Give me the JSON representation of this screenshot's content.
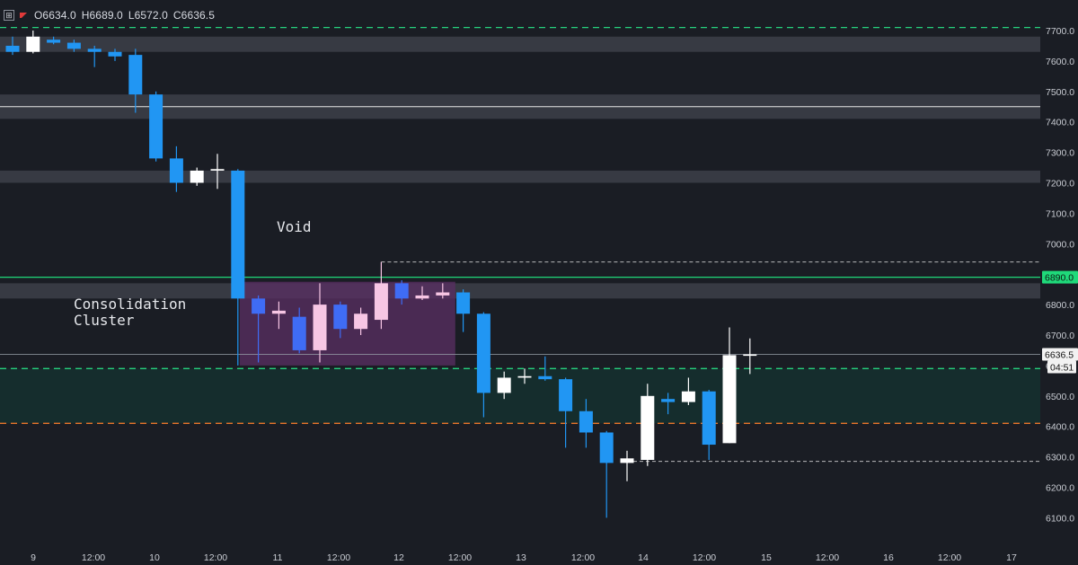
{
  "header": {
    "open": "O6634.0",
    "high": "H6689.0",
    "low": "L6572.0",
    "close": "C6636.5"
  },
  "annotations": {
    "void": "Void",
    "consolidation_line1": "Consolidation",
    "consolidation_line2": "Cluster"
  },
  "price_tags": {
    "green_line": "6890.0",
    "current_price": "6636.5",
    "countdown": "04:51"
  },
  "colors": {
    "background": "#1a1d24",
    "bull_candle": "#ffffff",
    "bear_candle": "#2196f3",
    "consolidation_bull": "#f7c6e4",
    "consolidation_bear": "#3f6cf5",
    "zone_gray": "#3d4049",
    "consolidation_box": "#5b2f63",
    "teal_zone": "#15302f",
    "green_dashed": "#26d07c",
    "orange_dashed": "#e8742a",
    "green_line": "#1fd97a"
  },
  "chart_data": {
    "type": "candlestick",
    "x_tick_labels": [
      "9",
      "12:00",
      "10",
      "12:00",
      "11",
      "12:00",
      "12",
      "12:00",
      "13",
      "12:00",
      "14",
      "12:00",
      "15",
      "12:00",
      "16",
      "12:00",
      "17"
    ],
    "y_ticks": [
      6100,
      6200,
      6300,
      6400,
      6500,
      6600,
      6700,
      6800,
      6900,
      7000,
      7100,
      7200,
      7300,
      7400,
      7500,
      7600,
      7700
    ],
    "ylim": [
      6000,
      7760
    ],
    "candles": [
      {
        "o": 7630,
        "h": 7680,
        "l": 7620,
        "c": 7650,
        "style": "bear"
      },
      {
        "o": 7630,
        "h": 7700,
        "l": 7625,
        "c": 7680,
        "style": "bull"
      },
      {
        "o": 7670,
        "h": 7680,
        "l": 7655,
        "c": 7660,
        "style": "bear"
      },
      {
        "o": 7660,
        "h": 7670,
        "l": 7630,
        "c": 7640,
        "style": "bear"
      },
      {
        "o": 7640,
        "h": 7650,
        "l": 7580,
        "c": 7630,
        "style": "bear"
      },
      {
        "o": 7630,
        "h": 7640,
        "l": 7600,
        "c": 7615,
        "style": "bear"
      },
      {
        "o": 7620,
        "h": 7640,
        "l": 7430,
        "c": 7490,
        "style": "bear"
      },
      {
        "o": 7490,
        "h": 7500,
        "l": 7270,
        "c": 7280,
        "style": "bear"
      },
      {
        "o": 7280,
        "h": 7320,
        "l": 7170,
        "c": 7200,
        "style": "bear"
      },
      {
        "o": 7200,
        "h": 7250,
        "l": 7190,
        "c": 7240,
        "style": "bull"
      },
      {
        "o": 7240,
        "h": 7295,
        "l": 7180,
        "c": 7245,
        "style": "bull"
      },
      {
        "o": 7240,
        "h": 7245,
        "l": 6600,
        "c": 6820,
        "style": "bear"
      },
      {
        "o": 6820,
        "h": 6830,
        "l": 6610,
        "c": 6770,
        "style": "cbear"
      },
      {
        "o": 6770,
        "h": 6810,
        "l": 6720,
        "c": 6780,
        "style": "cbull"
      },
      {
        "o": 6760,
        "h": 6790,
        "l": 6640,
        "c": 6650,
        "style": "cbear"
      },
      {
        "o": 6650,
        "h": 6870,
        "l": 6610,
        "c": 6800,
        "style": "cbull"
      },
      {
        "o": 6800,
        "h": 6810,
        "l": 6690,
        "c": 6720,
        "style": "cbear"
      },
      {
        "o": 6720,
        "h": 6790,
        "l": 6700,
        "c": 6770,
        "style": "cbull"
      },
      {
        "o": 6750,
        "h": 6940,
        "l": 6720,
        "c": 6870,
        "style": "cbull"
      },
      {
        "o": 6870,
        "h": 6880,
        "l": 6800,
        "c": 6820,
        "style": "cbear"
      },
      {
        "o": 6820,
        "h": 6860,
        "l": 6815,
        "c": 6830,
        "style": "cbull"
      },
      {
        "o": 6830,
        "h": 6870,
        "l": 6820,
        "c": 6840,
        "style": "cbull"
      },
      {
        "o": 6840,
        "h": 6850,
        "l": 6710,
        "c": 6770,
        "style": "bear"
      },
      {
        "o": 6770,
        "h": 6775,
        "l": 6430,
        "c": 6510,
        "style": "bear"
      },
      {
        "o": 6510,
        "h": 6580,
        "l": 6490,
        "c": 6560,
        "style": "bull"
      },
      {
        "o": 6560,
        "h": 6590,
        "l": 6540,
        "c": 6565,
        "style": "bull"
      },
      {
        "o": 6565,
        "h": 6630,
        "l": 6550,
        "c": 6555,
        "style": "bear"
      },
      {
        "o": 6555,
        "h": 6560,
        "l": 6330,
        "c": 6450,
        "style": "bear"
      },
      {
        "o": 6450,
        "h": 6490,
        "l": 6330,
        "c": 6380,
        "style": "bear"
      },
      {
        "o": 6380,
        "h": 6385,
        "l": 6100,
        "c": 6280,
        "style": "bear"
      },
      {
        "o": 6280,
        "h": 6320,
        "l": 6220,
        "c": 6295,
        "style": "bull"
      },
      {
        "o": 6290,
        "h": 6540,
        "l": 6270,
        "c": 6500,
        "style": "bull"
      },
      {
        "o": 6490,
        "h": 6510,
        "l": 6440,
        "c": 6480,
        "style": "bear"
      },
      {
        "o": 6480,
        "h": 6560,
        "l": 6470,
        "c": 6515,
        "style": "bull"
      },
      {
        "o": 6515,
        "h": 6520,
        "l": 6290,
        "c": 6340,
        "style": "bear"
      },
      {
        "o": 6345,
        "h": 6725,
        "l": 6345,
        "c": 6634,
        "style": "bull"
      },
      {
        "o": 6634,
        "h": 6689,
        "l": 6572,
        "c": 6636.5,
        "style": "bull"
      }
    ],
    "levels": {
      "zones_gray": [
        [
          7630,
          7680
        ],
        [
          7410,
          7490
        ],
        [
          7200,
          7240
        ],
        [
          6820,
          6870
        ]
      ],
      "white_line": 7450,
      "green_line": 6890,
      "green_dashed_top": 7710,
      "green_dashed_mid": 6590,
      "orange_dashed": 6410,
      "consolidation_box": {
        "price_low": 6600,
        "price_high": 6875
      },
      "teal_zone": {
        "price_low": 6410,
        "price_high": 6590
      },
      "dashed_white_top": 6940,
      "dashed_white_bottom": 6285,
      "current_price_line": 6636.5
    }
  }
}
